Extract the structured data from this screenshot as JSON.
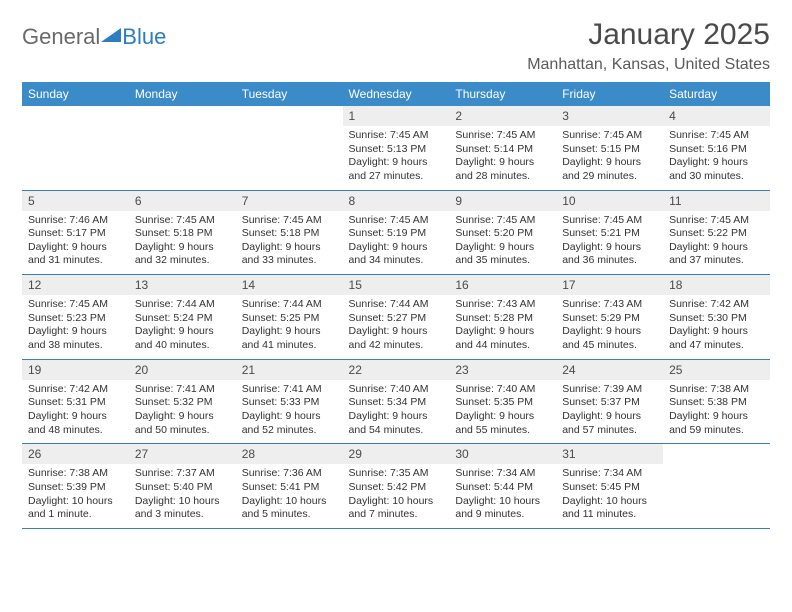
{
  "logo": {
    "text_general": "General",
    "text_blue": "Blue",
    "triangle_color": "#2d7dc0"
  },
  "title": "January 2025",
  "location": "Manhattan, Kansas, United States",
  "header_bg": "#3b8bc9",
  "header_fg": "#ffffff",
  "daynum_bg": "#eeeeee",
  "row_border": "#3b7fb5",
  "weekdays": [
    "Sunday",
    "Monday",
    "Tuesday",
    "Wednesday",
    "Thursday",
    "Friday",
    "Saturday"
  ],
  "weeks": [
    [
      {
        "num": "",
        "lines": []
      },
      {
        "num": "",
        "lines": []
      },
      {
        "num": "",
        "lines": []
      },
      {
        "num": "1",
        "lines": [
          "Sunrise: 7:45 AM",
          "Sunset: 5:13 PM",
          "Daylight: 9 hours",
          "and 27 minutes."
        ]
      },
      {
        "num": "2",
        "lines": [
          "Sunrise: 7:45 AM",
          "Sunset: 5:14 PM",
          "Daylight: 9 hours",
          "and 28 minutes."
        ]
      },
      {
        "num": "3",
        "lines": [
          "Sunrise: 7:45 AM",
          "Sunset: 5:15 PM",
          "Daylight: 9 hours",
          "and 29 minutes."
        ]
      },
      {
        "num": "4",
        "lines": [
          "Sunrise: 7:45 AM",
          "Sunset: 5:16 PM",
          "Daylight: 9 hours",
          "and 30 minutes."
        ]
      }
    ],
    [
      {
        "num": "5",
        "lines": [
          "Sunrise: 7:46 AM",
          "Sunset: 5:17 PM",
          "Daylight: 9 hours",
          "and 31 minutes."
        ]
      },
      {
        "num": "6",
        "lines": [
          "Sunrise: 7:45 AM",
          "Sunset: 5:18 PM",
          "Daylight: 9 hours",
          "and 32 minutes."
        ]
      },
      {
        "num": "7",
        "lines": [
          "Sunrise: 7:45 AM",
          "Sunset: 5:18 PM",
          "Daylight: 9 hours",
          "and 33 minutes."
        ]
      },
      {
        "num": "8",
        "lines": [
          "Sunrise: 7:45 AM",
          "Sunset: 5:19 PM",
          "Daylight: 9 hours",
          "and 34 minutes."
        ]
      },
      {
        "num": "9",
        "lines": [
          "Sunrise: 7:45 AM",
          "Sunset: 5:20 PM",
          "Daylight: 9 hours",
          "and 35 minutes."
        ]
      },
      {
        "num": "10",
        "lines": [
          "Sunrise: 7:45 AM",
          "Sunset: 5:21 PM",
          "Daylight: 9 hours",
          "and 36 minutes."
        ]
      },
      {
        "num": "11",
        "lines": [
          "Sunrise: 7:45 AM",
          "Sunset: 5:22 PM",
          "Daylight: 9 hours",
          "and 37 minutes."
        ]
      }
    ],
    [
      {
        "num": "12",
        "lines": [
          "Sunrise: 7:45 AM",
          "Sunset: 5:23 PM",
          "Daylight: 9 hours",
          "and 38 minutes."
        ]
      },
      {
        "num": "13",
        "lines": [
          "Sunrise: 7:44 AM",
          "Sunset: 5:24 PM",
          "Daylight: 9 hours",
          "and 40 minutes."
        ]
      },
      {
        "num": "14",
        "lines": [
          "Sunrise: 7:44 AM",
          "Sunset: 5:25 PM",
          "Daylight: 9 hours",
          "and 41 minutes."
        ]
      },
      {
        "num": "15",
        "lines": [
          "Sunrise: 7:44 AM",
          "Sunset: 5:27 PM",
          "Daylight: 9 hours",
          "and 42 minutes."
        ]
      },
      {
        "num": "16",
        "lines": [
          "Sunrise: 7:43 AM",
          "Sunset: 5:28 PM",
          "Daylight: 9 hours",
          "and 44 minutes."
        ]
      },
      {
        "num": "17",
        "lines": [
          "Sunrise: 7:43 AM",
          "Sunset: 5:29 PM",
          "Daylight: 9 hours",
          "and 45 minutes."
        ]
      },
      {
        "num": "18",
        "lines": [
          "Sunrise: 7:42 AM",
          "Sunset: 5:30 PM",
          "Daylight: 9 hours",
          "and 47 minutes."
        ]
      }
    ],
    [
      {
        "num": "19",
        "lines": [
          "Sunrise: 7:42 AM",
          "Sunset: 5:31 PM",
          "Daylight: 9 hours",
          "and 48 minutes."
        ]
      },
      {
        "num": "20",
        "lines": [
          "Sunrise: 7:41 AM",
          "Sunset: 5:32 PM",
          "Daylight: 9 hours",
          "and 50 minutes."
        ]
      },
      {
        "num": "21",
        "lines": [
          "Sunrise: 7:41 AM",
          "Sunset: 5:33 PM",
          "Daylight: 9 hours",
          "and 52 minutes."
        ]
      },
      {
        "num": "22",
        "lines": [
          "Sunrise: 7:40 AM",
          "Sunset: 5:34 PM",
          "Daylight: 9 hours",
          "and 54 minutes."
        ]
      },
      {
        "num": "23",
        "lines": [
          "Sunrise: 7:40 AM",
          "Sunset: 5:35 PM",
          "Daylight: 9 hours",
          "and 55 minutes."
        ]
      },
      {
        "num": "24",
        "lines": [
          "Sunrise: 7:39 AM",
          "Sunset: 5:37 PM",
          "Daylight: 9 hours",
          "and 57 minutes."
        ]
      },
      {
        "num": "25",
        "lines": [
          "Sunrise: 7:38 AM",
          "Sunset: 5:38 PM",
          "Daylight: 9 hours",
          "and 59 minutes."
        ]
      }
    ],
    [
      {
        "num": "26",
        "lines": [
          "Sunrise: 7:38 AM",
          "Sunset: 5:39 PM",
          "Daylight: 10 hours",
          "and 1 minute."
        ]
      },
      {
        "num": "27",
        "lines": [
          "Sunrise: 7:37 AM",
          "Sunset: 5:40 PM",
          "Daylight: 10 hours",
          "and 3 minutes."
        ]
      },
      {
        "num": "28",
        "lines": [
          "Sunrise: 7:36 AM",
          "Sunset: 5:41 PM",
          "Daylight: 10 hours",
          "and 5 minutes."
        ]
      },
      {
        "num": "29",
        "lines": [
          "Sunrise: 7:35 AM",
          "Sunset: 5:42 PM",
          "Daylight: 10 hours",
          "and 7 minutes."
        ]
      },
      {
        "num": "30",
        "lines": [
          "Sunrise: 7:34 AM",
          "Sunset: 5:44 PM",
          "Daylight: 10 hours",
          "and 9 minutes."
        ]
      },
      {
        "num": "31",
        "lines": [
          "Sunrise: 7:34 AM",
          "Sunset: 5:45 PM",
          "Daylight: 10 hours",
          "and 11 minutes."
        ]
      },
      {
        "num": "",
        "lines": []
      }
    ]
  ]
}
